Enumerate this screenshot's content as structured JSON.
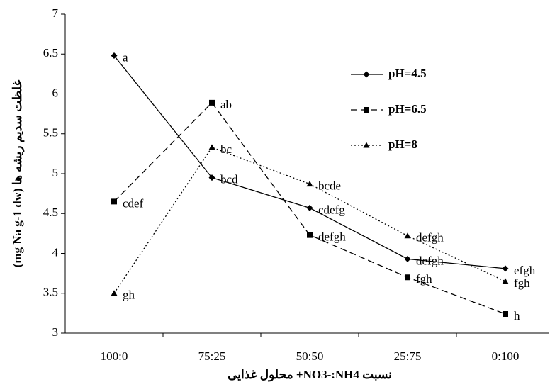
{
  "chart_data": {
    "type": "line",
    "x_label": "نسبت NO3-:NH4+ محلول غذایی",
    "y_label": "غلظت سدیم ریشه ها (mg Na g-1 dw)",
    "categories": [
      "100:0",
      "75:25",
      "50:50",
      "25:75",
      "0:100"
    ],
    "ylim": [
      3,
      7
    ],
    "yticks": [
      3,
      3.5,
      4,
      4.5,
      5,
      5.5,
      6,
      6.5,
      7
    ],
    "grid": false,
    "legend_position": "upper right",
    "series": [
      {
        "name": "pH=4.5",
        "color": "#000000",
        "marker": "diamond",
        "line_style": "solid",
        "values": [
          6.48,
          4.95,
          4.57,
          3.93,
          3.81
        ],
        "letters": [
          "a",
          "bcd",
          "cdefg",
          "defgh",
          "efgh"
        ]
      },
      {
        "name": "pH=6.5",
        "color": "#000000",
        "marker": "square",
        "line_style": "dashed",
        "values": [
          4.65,
          5.89,
          4.23,
          3.7,
          3.24
        ],
        "letters": [
          "cdef",
          "ab",
          "defgh",
          "fgh",
          "h"
        ]
      },
      {
        "name": "pH=8",
        "color": "#000000",
        "marker": "triangle",
        "line_style": "dotted",
        "values": [
          3.5,
          5.33,
          4.87,
          4.22,
          3.65
        ],
        "letters": [
          "gh",
          "bc",
          "bcde",
          "defgh",
          "fgh"
        ]
      }
    ]
  }
}
